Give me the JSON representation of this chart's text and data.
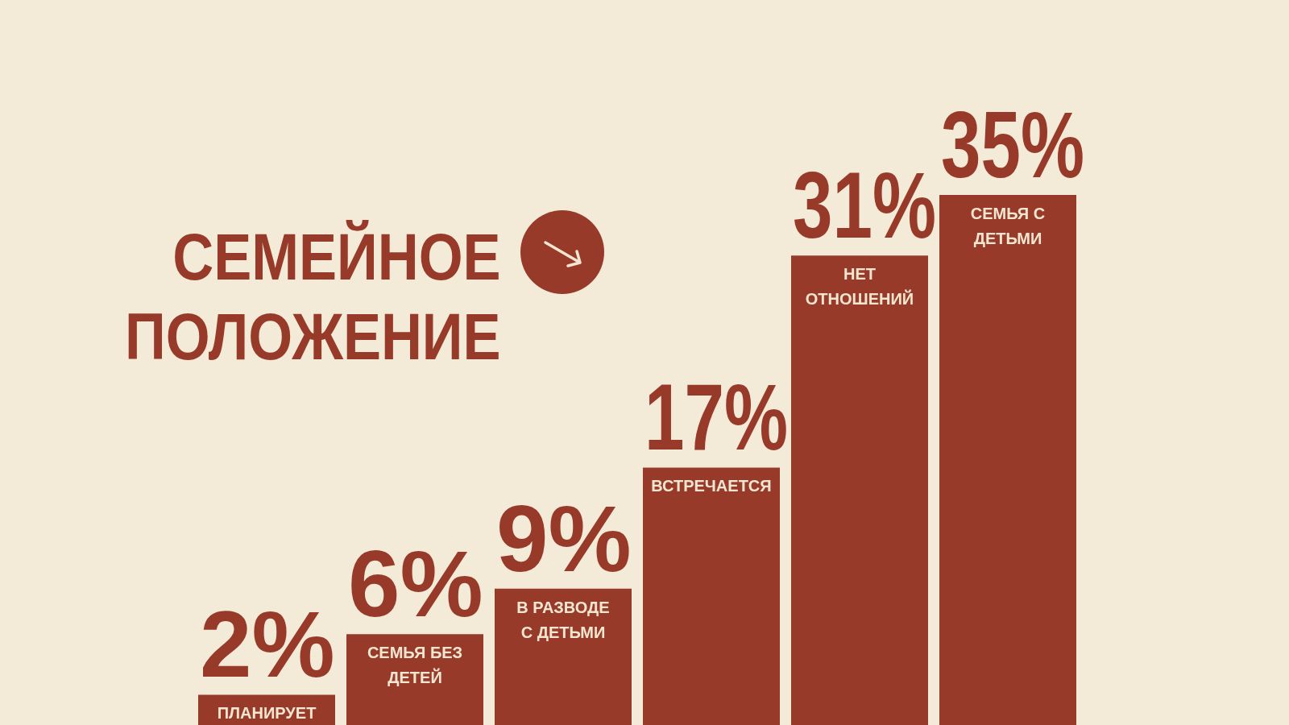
{
  "chart_data": {
    "type": "bar",
    "title": "СЕМЕЙНОЕ ПОЛОЖЕНИЕ",
    "categories": [
      "ПЛАНИРУЕТ",
      "СЕМЬЯ БЕЗ ДЕТЕЙ",
      "В РАЗВОДЕ С ДЕТЬМИ",
      "ВСТРЕЧАЕТСЯ",
      "НЕТ ОТНОШЕНИЙ",
      "СЕМЬЯ С ДЕТЬМИ"
    ],
    "values": [
      2,
      6,
      9,
      17,
      31,
      35
    ],
    "value_labels": [
      "2%",
      "6%",
      "9%",
      "17%",
      "31%",
      "35%"
    ],
    "color": "#983a29",
    "tick_labels": "x"
  }
}
